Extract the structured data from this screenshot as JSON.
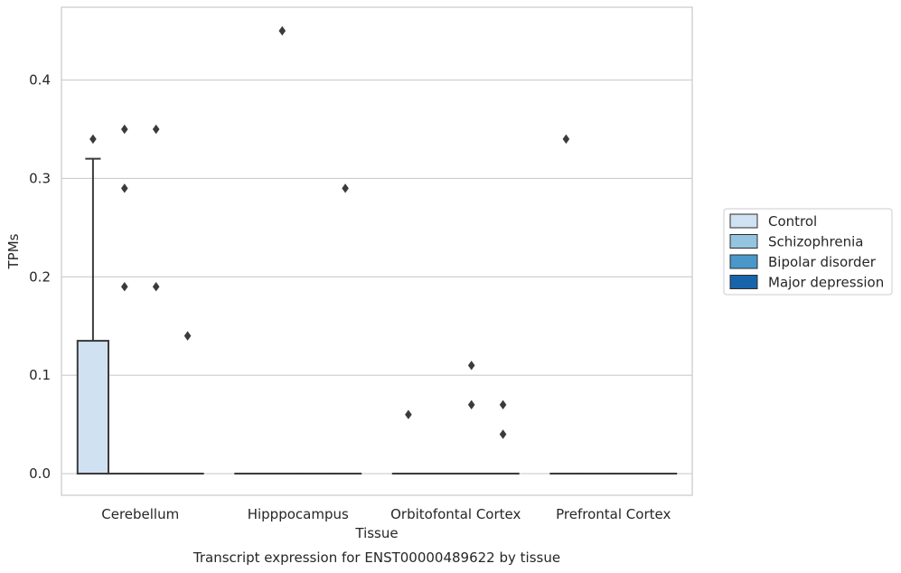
{
  "chart_data": {
    "type": "box",
    "title": "Transcript expression for ENST00000489622 by tissue",
    "xlabel": "Tissue",
    "ylabel": "TPMs",
    "ylim": [
      -0.022,
      0.474
    ],
    "yticks": [
      "0.0",
      "0.1",
      "0.2",
      "0.3",
      "0.4"
    ],
    "yticks_values": [
      0.0,
      0.1,
      0.2,
      0.3,
      0.4
    ],
    "grid": "horizontal",
    "legend_position": "right",
    "categories": [
      "Cerebellum",
      "Hipppocampus",
      "Orbitofontal Cortex",
      "Prefrontal Cortex"
    ],
    "series": [
      {
        "name": "Control",
        "color": "#d0e1f2",
        "boxes": [
          {
            "q1": 0.0,
            "median": 0.0,
            "q3": 0.135,
            "whisker_low": 0.0,
            "whisker_high": 0.32,
            "outliers": [
              0.34
            ]
          },
          {
            "q1": 0.0,
            "median": 0.0,
            "q3": 0.0,
            "whisker_low": 0.0,
            "whisker_high": 0.0,
            "outliers": []
          },
          {
            "q1": 0.0,
            "median": 0.0,
            "q3": 0.0,
            "whisker_low": 0.0,
            "whisker_high": 0.0,
            "outliers": [
              0.06
            ]
          },
          {
            "q1": 0.0,
            "median": 0.0,
            "q3": 0.0,
            "whisker_low": 0.0,
            "whisker_high": 0.0,
            "outliers": [
              0.34
            ]
          }
        ]
      },
      {
        "name": "Schizophrenia",
        "color": "#94c4df",
        "boxes": [
          {
            "q1": 0.0,
            "median": 0.0,
            "q3": 0.0,
            "whisker_low": 0.0,
            "whisker_high": 0.0,
            "outliers": [
              0.35,
              0.29,
              0.19
            ]
          },
          {
            "q1": 0.0,
            "median": 0.0,
            "q3": 0.0,
            "whisker_low": 0.0,
            "whisker_high": 0.0,
            "outliers": [
              0.45
            ]
          },
          {
            "q1": 0.0,
            "median": 0.0,
            "q3": 0.0,
            "whisker_low": 0.0,
            "whisker_high": 0.0,
            "outliers": []
          },
          {
            "q1": 0.0,
            "median": 0.0,
            "q3": 0.0,
            "whisker_low": 0.0,
            "whisker_high": 0.0,
            "outliers": []
          }
        ]
      },
      {
        "name": "Bipolar disorder",
        "color": "#4a98c9",
        "boxes": [
          {
            "q1": 0.0,
            "median": 0.0,
            "q3": 0.0,
            "whisker_low": 0.0,
            "whisker_high": 0.0,
            "outliers": [
              0.35,
              0.19
            ]
          },
          {
            "q1": 0.0,
            "median": 0.0,
            "q3": 0.0,
            "whisker_low": 0.0,
            "whisker_high": 0.0,
            "outliers": []
          },
          {
            "q1": 0.0,
            "median": 0.0,
            "q3": 0.0,
            "whisker_low": 0.0,
            "whisker_high": 0.0,
            "outliers": [
              0.11,
              0.07
            ]
          },
          {
            "q1": 0.0,
            "median": 0.0,
            "q3": 0.0,
            "whisker_low": 0.0,
            "whisker_high": 0.0,
            "outliers": []
          }
        ]
      },
      {
        "name": "Major depression",
        "color": "#1764ab",
        "boxes": [
          {
            "q1": 0.0,
            "median": 0.0,
            "q3": 0.0,
            "whisker_low": 0.0,
            "whisker_high": 0.0,
            "outliers": [
              0.14
            ]
          },
          {
            "q1": 0.0,
            "median": 0.0,
            "q3": 0.0,
            "whisker_low": 0.0,
            "whisker_high": 0.0,
            "outliers": [
              0.29
            ]
          },
          {
            "q1": 0.0,
            "median": 0.0,
            "q3": 0.0,
            "whisker_low": 0.0,
            "whisker_high": 0.0,
            "outliers": [
              0.07,
              0.04
            ]
          },
          {
            "q1": 0.0,
            "median": 0.0,
            "q3": 0.0,
            "whisker_low": 0.0,
            "whisker_high": 0.0,
            "outliers": []
          }
        ]
      }
    ]
  }
}
